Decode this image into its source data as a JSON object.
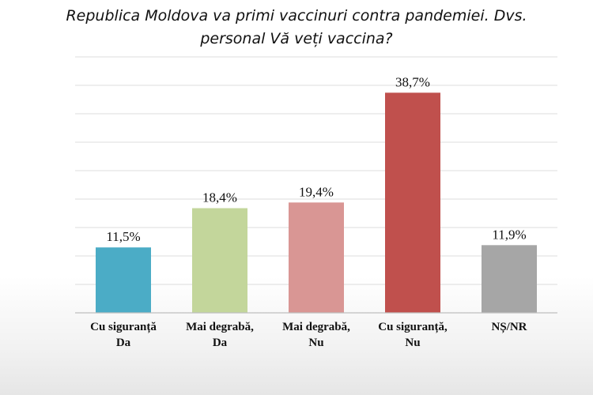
{
  "chart_data": {
    "type": "bar",
    "title": "Republica Moldova va primi vaccinuri contra pandemiei. Dvs. personal Vă veți vaccina?",
    "title_lines": [
      "Republica Moldova va primi vaccinuri contra pandemiei. Dvs.",
      "personal Vă veți vaccina?"
    ],
    "categories": [
      [
        "Cu siguranță",
        "Da"
      ],
      [
        "Mai degrabă,",
        "Da"
      ],
      [
        "Mai degrabă,",
        "Nu"
      ],
      [
        "Cu siguranță,",
        "Nu"
      ],
      [
        "NȘ/NR"
      ]
    ],
    "values": [
      11.5,
      18.4,
      19.4,
      38.7,
      11.9
    ],
    "data_labels": [
      "11,5%",
      "18,4%",
      "19,4%",
      "38,7%",
      "11,9%"
    ],
    "bar_colors": [
      "#4bacc6",
      "#c3d69b",
      "#d99694",
      "#c0504d",
      "#a6a6a6"
    ],
    "ylim": [
      0,
      45
    ],
    "grid": true,
    "legend": "none",
    "xlabel": "",
    "ylabel": ""
  }
}
